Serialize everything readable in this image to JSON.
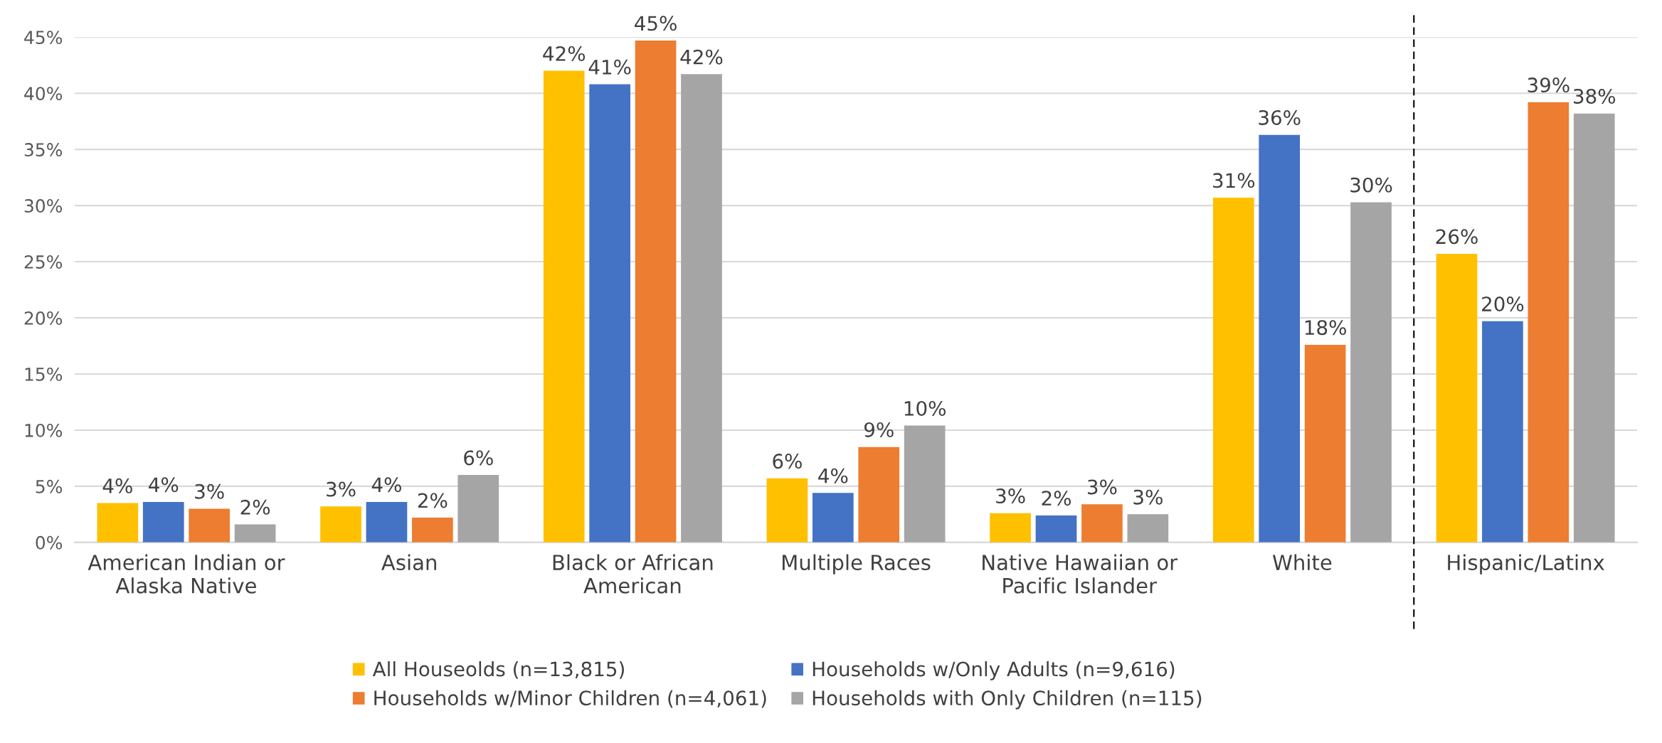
{
  "chart_data": {
    "type": "bar",
    "categories": [
      "American Indian or\nAlaska Native",
      "Asian",
      "Black or African\nAmerican",
      "Multiple Races",
      "Native Hawaiian or\nPacific Islander",
      "White",
      "Hispanic/Latinx"
    ],
    "series": [
      {
        "name": "All Houseolds (n=13,815)",
        "color": "#ffc000",
        "values": [
          3.5,
          3.2,
          42.0,
          5.7,
          2.6,
          30.7,
          25.7
        ],
        "value_labels": [
          "4%",
          "3%",
          "42%",
          "6%",
          "3%",
          "31%",
          "26%"
        ]
      },
      {
        "name": "Households w/Only Adults (n=9,616)",
        "color": "#4472c4",
        "values": [
          3.6,
          3.6,
          40.8,
          4.4,
          2.4,
          36.3,
          19.7
        ],
        "value_labels": [
          "4%",
          "4%",
          "41%",
          "4%",
          "2%",
          "36%",
          "20%"
        ]
      },
      {
        "name": "Households w/Minor Children (n=4,061)",
        "color": "#ed7d31",
        "values": [
          3.0,
          2.2,
          44.7,
          8.5,
          3.4,
          17.6,
          39.2
        ],
        "value_labels": [
          "3%",
          "2%",
          "45%",
          "9%",
          "3%",
          "18%",
          "39%"
        ]
      },
      {
        "name": "Households with Only Children (n=115)",
        "color": "#a5a5a5",
        "values": [
          1.6,
          6.0,
          41.7,
          10.4,
          2.5,
          30.3,
          38.2
        ],
        "value_labels": [
          "2%",
          "6%",
          "42%",
          "10%",
          "3%",
          "30%",
          "38%"
        ]
      }
    ],
    "ylim": [
      0,
      45
    ],
    "yticks": [
      {
        "value": 0,
        "label": "0%"
      },
      {
        "value": 5,
        "label": "5%"
      },
      {
        "value": 10,
        "label": "10%"
      },
      {
        "value": 15,
        "label": "15%"
      },
      {
        "value": 20,
        "label": "20%"
      },
      {
        "value": 25,
        "label": "25%"
      },
      {
        "value": 30,
        "label": "30%"
      },
      {
        "value": 35,
        "label": "35%"
      },
      {
        "value": 40,
        "label": "40%"
      },
      {
        "value": 45,
        "label": "45%"
      }
    ],
    "grid": "y",
    "legend": "bottom"
  }
}
